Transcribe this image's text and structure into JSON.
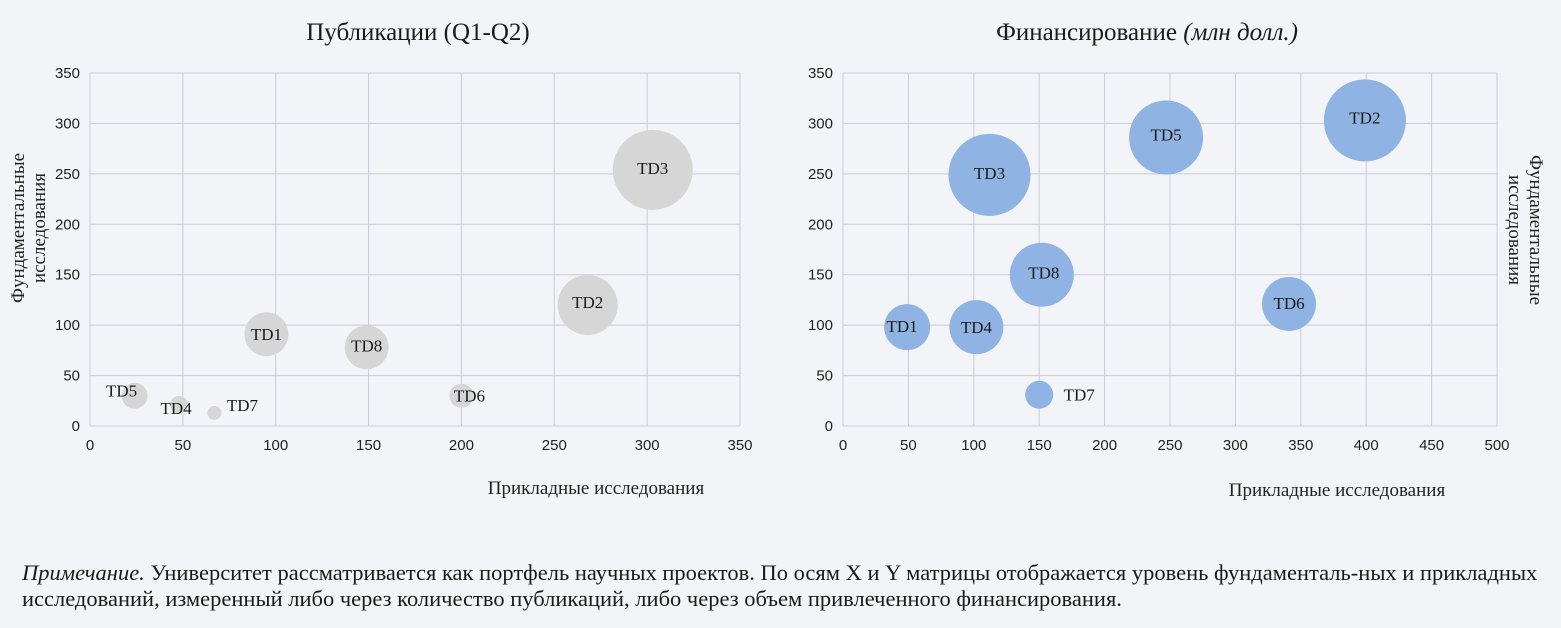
{
  "chart_data": [
    {
      "type": "scatter",
      "title": "Публикации (Q1-Q2)",
      "xlabel": "Прикладные исследования",
      "ylabel": [
        "Фундаментальные",
        "исследования"
      ],
      "xlim": [
        0,
        350
      ],
      "ylim": [
        0,
        350
      ],
      "xticks": [
        "0",
        "50",
        "100",
        "150",
        "200",
        "250",
        "300",
        "350"
      ],
      "yticks": [
        "0",
        "50",
        "100",
        "150",
        "200",
        "250",
        "300",
        "350"
      ],
      "grid": true,
      "color": "#d6d6d6",
      "points": [
        {
          "label": "TD5",
          "x": 24,
          "y": 30,
          "size": 13
        },
        {
          "label": "TD4",
          "x": 48,
          "y": 21,
          "size": 9
        },
        {
          "label": "TD7",
          "x": 67,
          "y": 13,
          "size": 7
        },
        {
          "label": "TD1",
          "x": 95,
          "y": 91,
          "size": 22
        },
        {
          "label": "TD8",
          "x": 149,
          "y": 78,
          "size": 22
        },
        {
          "label": "TD6",
          "x": 200,
          "y": 30,
          "size": 12
        },
        {
          "label": "TD2",
          "x": 268,
          "y": 120,
          "size": 30
        },
        {
          "label": "TD3",
          "x": 303,
          "y": 254,
          "size": 40
        }
      ]
    },
    {
      "type": "scatter",
      "title": "Финансирование",
      "title_unit": "(млн долл.)",
      "xlabel": "Прикладные исследования",
      "ylabel": [
        "Фундаментальные",
        "исследования"
      ],
      "xlim": [
        0,
        500
      ],
      "ylim": [
        0,
        350
      ],
      "xticks": [
        "0",
        "50",
        "100",
        "150",
        "200",
        "250",
        "300",
        "350",
        "400",
        "450",
        "500"
      ],
      "yticks": [
        "0",
        "50",
        "100",
        "150",
        "200",
        "250",
        "300",
        "350"
      ],
      "grid": true,
      "color": "#8fb3e2",
      "points": [
        {
          "label": "TD1",
          "x": 49,
          "y": 98,
          "size": 23
        },
        {
          "label": "TD4",
          "x": 102,
          "y": 98,
          "size": 27
        },
        {
          "label": "TD7",
          "x": 150,
          "y": 31,
          "size": 14
        },
        {
          "label": "TD8",
          "x": 152,
          "y": 150,
          "size": 32
        },
        {
          "label": "TD3",
          "x": 112,
          "y": 249,
          "size": 41
        },
        {
          "label": "TD5",
          "x": 247,
          "y": 286,
          "size": 37
        },
        {
          "label": "TD6",
          "x": 341,
          "y": 121,
          "size": 27
        },
        {
          "label": "TD2",
          "x": 399,
          "y": 303,
          "size": 41
        }
      ]
    }
  ],
  "note": {
    "label": "Примечание.",
    "text": " Университет рассматривается как портфель научных проектов. По осям X и Y матрицы отображается уровень фундаменталь-ных и прикладных исследований, измеренный либо через количество публикаций, либо через объем привлеченного финансирования."
  }
}
